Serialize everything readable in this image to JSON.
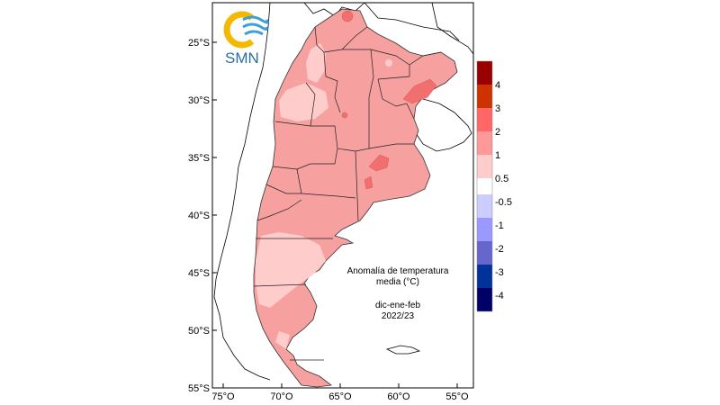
{
  "logo": {
    "text": "SMN"
  },
  "annotation": {
    "line1": "Anomalía de temperatura",
    "line2": "media (°C)",
    "line3": "dic-ene-feb",
    "line4": "2022/23"
  },
  "axes": {
    "lat_labels": [
      "25°S",
      "30°S",
      "35°S",
      "40°S",
      "45°S",
      "50°S",
      "55°S"
    ],
    "lon_labels": [
      "75°O",
      "70°O",
      "65°O",
      "60°O",
      "55°O"
    ]
  },
  "legend": {
    "positive": [
      {
        "label": "4",
        "color": "#990000"
      },
      {
        "label": "3",
        "color": "#cc3300"
      },
      {
        "label": "2",
        "color": "#ff6666"
      },
      {
        "label": "1",
        "color": "#ff9999"
      },
      {
        "label": "0.5",
        "color": "#ffcccc"
      }
    ],
    "negative": [
      {
        "label": "-0.5",
        "color": "#ccccff"
      },
      {
        "label": "-1",
        "color": "#9999ff"
      },
      {
        "label": "-2",
        "color": "#6666cc"
      },
      {
        "label": "-3",
        "color": "#003399"
      },
      {
        "label": "-4",
        "color": "#000066"
      }
    ]
  },
  "colors": {
    "anomaly_0_5_to_1": "#ffcccc",
    "anomaly_1_to_2": "#f6a0a0",
    "anomaly_2_to_3": "#f07070",
    "logo_yellow": "#f5b800",
    "logo_blue": "#3aa0d8"
  }
}
